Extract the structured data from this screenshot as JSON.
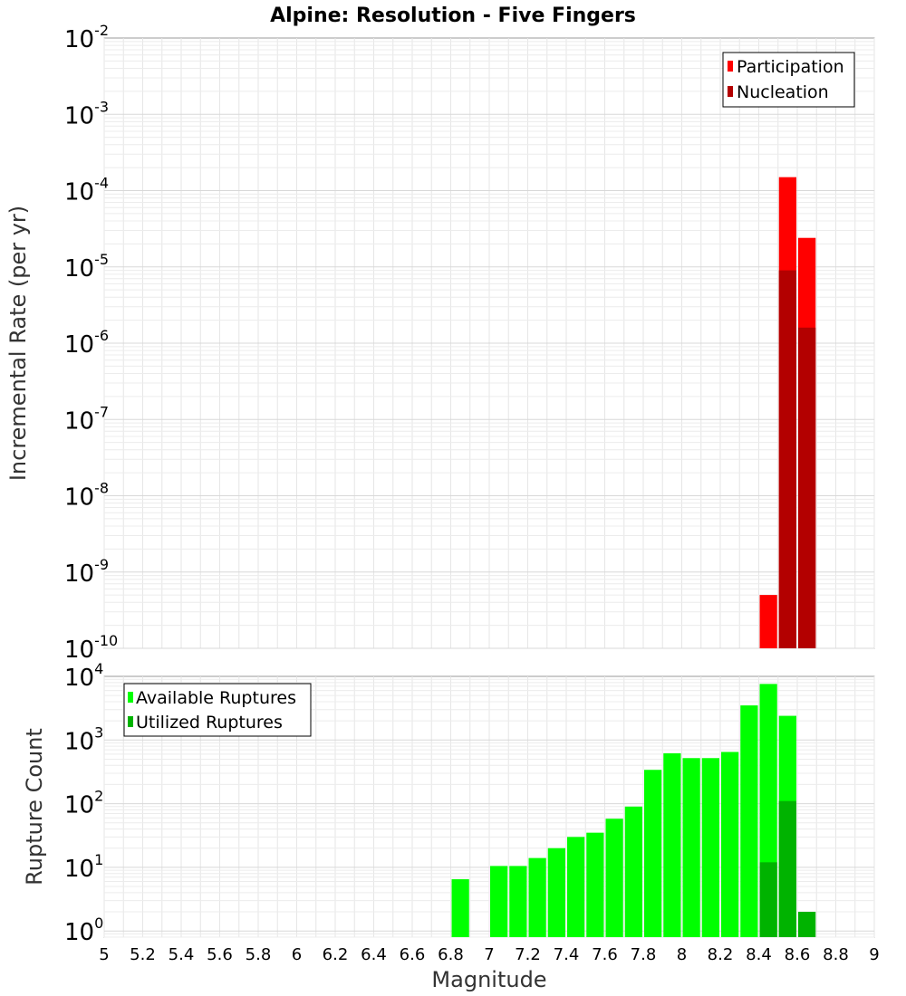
{
  "chart_data": [
    {
      "type": "bar",
      "title": "Alpine: Resolution - Five Fingers",
      "xlabel": "",
      "ylabel": "Incremental Rate (per yr)",
      "yscale": "log",
      "ylim": [
        1e-10,
        0.01
      ],
      "xlim": [
        5,
        9
      ],
      "bar_width": 0.1,
      "legend_position": "top-right",
      "series": [
        {
          "name": "Participation",
          "color": "#ff0000",
          "x": [
            8.45,
            8.55,
            8.65
          ],
          "values": [
            5e-10,
            0.00015,
            2.4e-05
          ]
        },
        {
          "name": "Nucleation",
          "color": "#b30000",
          "x": [
            8.55,
            8.65
          ],
          "values": [
            9e-06,
            1.6e-06
          ]
        }
      ],
      "y_ticks": [
        {
          "base": "10",
          "exp": "-2"
        },
        {
          "base": "10",
          "exp": "-3"
        },
        {
          "base": "10",
          "exp": "-4"
        },
        {
          "base": "10",
          "exp": "-5"
        },
        {
          "base": "10",
          "exp": "-6"
        },
        {
          "base": "10",
          "exp": "-7"
        },
        {
          "base": "10",
          "exp": "-8"
        },
        {
          "base": "10",
          "exp": "-9"
        },
        {
          "base": "10",
          "exp": "-10"
        }
      ]
    },
    {
      "type": "bar",
      "title": "",
      "xlabel": "Magnitude",
      "ylabel": "Rupture Count",
      "yscale": "log",
      "ylim": [
        0.8,
        10000
      ],
      "xlim": [
        5,
        9
      ],
      "bar_width": 0.1,
      "legend_position": "top-left",
      "series": [
        {
          "name": "Available Ruptures",
          "color": "#00ff00",
          "x": [
            6.85,
            7.05,
            7.15,
            7.25,
            7.35,
            7.45,
            7.55,
            7.65,
            7.75,
            7.85,
            7.95,
            8.05,
            8.15,
            8.25,
            8.35,
            8.45,
            8.55
          ],
          "values": [
            6.5,
            10.5,
            10.5,
            14,
            20,
            30,
            35,
            58,
            90,
            340,
            620,
            520,
            520,
            650,
            3500,
            7600,
            2400
          ]
        },
        {
          "name": "Utilized Ruptures",
          "color": "#00b300",
          "x": [
            8.45,
            8.55,
            8.65
          ],
          "values": [
            12,
            110,
            2
          ]
        }
      ],
      "y_ticks": [
        {
          "base": "10",
          "exp": "4"
        },
        {
          "base": "10",
          "exp": "3"
        },
        {
          "base": "10",
          "exp": "2"
        },
        {
          "base": "10",
          "exp": "1"
        },
        {
          "base": "10",
          "exp": "0"
        }
      ],
      "x_ticks": [
        "5",
        "5.2",
        "5.4",
        "5.6",
        "5.8",
        "6",
        "6.2",
        "6.4",
        "6.6",
        "6.8",
        "7",
        "7.2",
        "7.4",
        "7.6",
        "7.8",
        "8",
        "8.2",
        "8.4",
        "8.6",
        "8.8",
        "9"
      ]
    }
  ]
}
